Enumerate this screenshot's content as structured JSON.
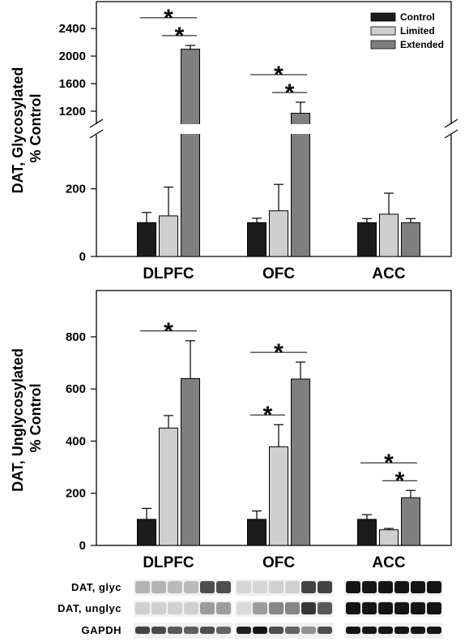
{
  "colors": {
    "Control": "#1c1c1c",
    "Limited": "#cfcfcf",
    "Extended": "#7f7f7f"
  },
  "chart_data": [
    {
      "type": "bar",
      "ylabel": [
        "DAT, Glycosylated",
        "% Control"
      ],
      "categories": [
        "DLPFC",
        "OFC",
        "ACC"
      ],
      "axis_break": true,
      "y_lower_ticks": [
        "0",
        "200"
      ],
      "y_upper_ticks": [
        "1200",
        "1600",
        "2000",
        "2400"
      ],
      "legend": [
        "Control",
        "Limited",
        "Extended"
      ],
      "series": [
        {
          "name": "Control",
          "values": [
            100,
            100,
            100
          ],
          "errors": [
            30,
            13,
            12
          ]
        },
        {
          "name": "Limited",
          "values": [
            120,
            135,
            125
          ],
          "errors": [
            85,
            78,
            62
          ]
        },
        {
          "name": "Extended",
          "values": [
            2100,
            1170,
            100
          ],
          "errors": [
            55,
            160,
            12
          ]
        }
      ],
      "significance": [
        {
          "cat": 0,
          "from": 0,
          "to": 2,
          "label": "*"
        },
        {
          "cat": 0,
          "from": 1,
          "to": 2,
          "label": "*"
        },
        {
          "cat": 1,
          "from": 0,
          "to": 2,
          "label": "*"
        },
        {
          "cat": 1,
          "from": 1,
          "to": 2,
          "label": "*"
        }
      ]
    },
    {
      "type": "bar",
      "ylabel": [
        "DAT, Unglycosylated",
        "% Control"
      ],
      "categories": [
        "DLPFC",
        "OFC",
        "ACC"
      ],
      "y_ticks": [
        "0",
        "200",
        "400",
        "600",
        "800"
      ],
      "series": [
        {
          "name": "Control",
          "values": [
            100,
            100,
            100
          ],
          "errors": [
            42,
            32,
            18
          ]
        },
        {
          "name": "Limited",
          "values": [
            450,
            378,
            60
          ],
          "errors": [
            48,
            85,
            5
          ]
        },
        {
          "name": "Extended",
          "values": [
            640,
            638,
            183
          ],
          "errors": [
            145,
            65,
            28
          ]
        }
      ],
      "significance": [
        {
          "cat": 0,
          "from": 0,
          "to": 2,
          "label": "*"
        },
        {
          "cat": 1,
          "from": 0,
          "to": 1,
          "label": "*"
        },
        {
          "cat": 1,
          "from": 0,
          "to": 2,
          "label": "*"
        },
        {
          "cat": 2,
          "from": 0,
          "to": 2,
          "label": "*"
        },
        {
          "cat": 2,
          "from": 1,
          "to": 2,
          "label": "*"
        }
      ]
    }
  ],
  "blots": {
    "labels": [
      "DAT, glyc",
      "DAT, unglyc",
      "GAPDH"
    ],
    "bands": [
      [
        [
          0.25,
          0.25,
          0.22,
          0.22,
          0.7,
          0.7
        ],
        [
          0.12,
          0.12,
          0.12,
          0.12,
          0.35,
          0.35
        ],
        [
          0.75,
          0.72,
          0.65,
          0.62,
          0.7,
          0.6
        ]
      ],
      [
        [
          0.1,
          0.1,
          0.12,
          0.12,
          0.75,
          0.75
        ],
        [
          0.08,
          0.35,
          0.45,
          0.45,
          0.8,
          0.65
        ],
        [
          0.9,
          0.95,
          0.7,
          0.6,
          0.4,
          0.7
        ]
      ],
      [
        [
          0.95,
          0.95,
          0.95,
          0.95,
          0.95,
          0.95
        ],
        [
          0.95,
          0.95,
          0.95,
          0.95,
          0.95,
          0.95
        ],
        [
          0.95,
          0.95,
          0.95,
          0.95,
          0.95,
          0.95
        ]
      ]
    ]
  }
}
